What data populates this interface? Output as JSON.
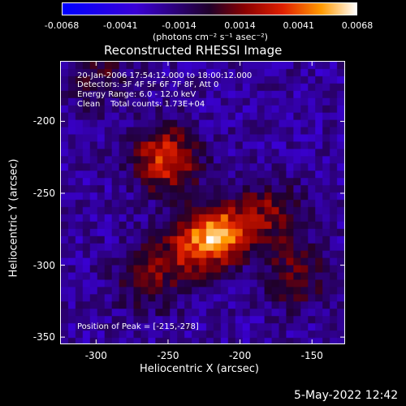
{
  "chart_data": {
    "type": "heatmap",
    "title": "Reconstructed RHESSI Image",
    "xlabel": "Heliocentric X (arcsec)",
    "ylabel": "Heliocentric Y (arcsec)",
    "xlim": [
      -325,
      -127
    ],
    "ylim": [
      -355,
      -158
    ],
    "x_ticks": [
      "-300",
      "-250",
      "-200",
      "-150"
    ],
    "x_tick_values": [
      -300,
      -250,
      -200,
      -150
    ],
    "y_ticks": [
      "-200",
      "-250",
      "-300",
      "-350"
    ],
    "y_tick_values": [
      -200,
      -250,
      -300,
      -350
    ],
    "colorbar": {
      "ticks": [
        "-0.0068",
        "-0.0041",
        "-0.0014",
        "0.0014",
        "0.0041",
        "0.0068"
      ],
      "tick_values": [
        -0.0068,
        -0.0041,
        -0.0014,
        0.0014,
        0.0041,
        0.0068
      ],
      "unit_label": "(photons cm⁻² s⁻¹ asec⁻²)",
      "range": [
        -0.0068,
        0.0068
      ]
    },
    "annotations": {
      "time": "20-Jan-2006 17:54:12.000 to 18:00:12.000",
      "detectors": "Detectors: 3F 4F 5F 6F 7F 8F, Att 0",
      "energy": "Energy Range: 6.0 - 12.0 keV",
      "clean": "Clean    Total counts: 1.73E+04",
      "peak": "Position of Peak = [-215,-278]"
    },
    "sources": [
      {
        "x": -215,
        "y": -278,
        "peak": 0.0068
      },
      {
        "x": -252,
        "y": -226,
        "peak": 0.0055
      },
      {
        "x": -235,
        "y": -290,
        "peak": 0.0038
      },
      {
        "x": -180,
        "y": -265,
        "peak": 0.0035
      },
      {
        "x": -160,
        "y": -308,
        "peak": 0.003
      },
      {
        "x": -265,
        "y": -310,
        "peak": 0.0028
      },
      {
        "x": -300,
        "y": -168,
        "peak": 0.0022
      }
    ],
    "grid": false
  },
  "footer": {
    "date": "5-May-2022 12:42"
  }
}
